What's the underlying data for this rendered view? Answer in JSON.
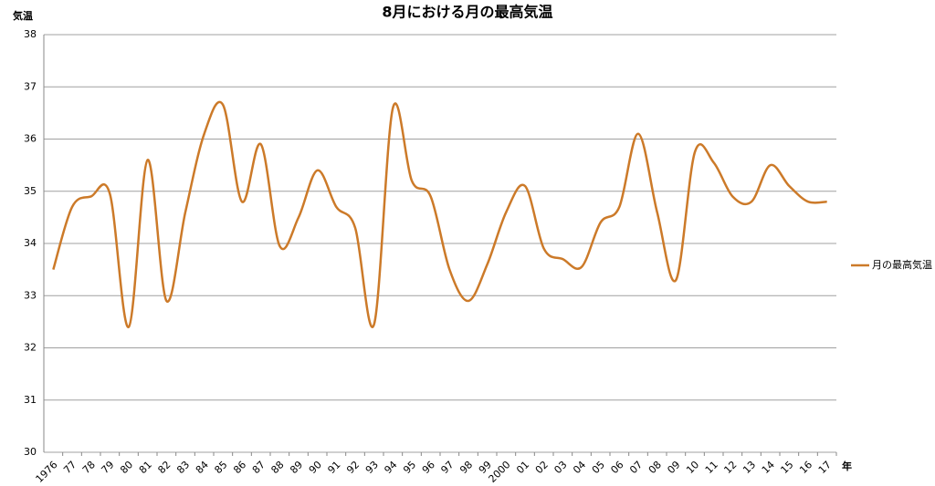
{
  "chart_data": {
    "type": "line",
    "title": "8月における月の最高気温",
    "y_label": "気温",
    "x_label": "年",
    "categories": [
      "1976",
      "77",
      "78",
      "79",
      "80",
      "81",
      "82",
      "83",
      "84",
      "85",
      "86",
      "87",
      "88",
      "89",
      "90",
      "91",
      "92",
      "93",
      "94",
      "95",
      "96",
      "97",
      "98",
      "99",
      "2000",
      "01",
      "02",
      "03",
      "04",
      "05",
      "06",
      "07",
      "08",
      "09",
      "10",
      "11",
      "12",
      "13",
      "14",
      "15",
      "16",
      "17"
    ],
    "series": [
      {
        "name": "月の最高気温",
        "color": "#cc7a29",
        "values": [
          33.5,
          34.7,
          34.9,
          34.95,
          32.4,
          35.6,
          32.9,
          34.6,
          36.1,
          36.65,
          34.8,
          35.9,
          33.95,
          34.5,
          35.4,
          34.7,
          34.3,
          32.45,
          36.6,
          35.2,
          34.9,
          33.5,
          32.9,
          33.6,
          34.6,
          35.1,
          33.9,
          33.7,
          33.55,
          34.4,
          34.7,
          36.1,
          34.6,
          33.3,
          35.75,
          35.55,
          34.9,
          34.8,
          35.5,
          35.1,
          34.8,
          34.8
        ]
      }
    ],
    "ylim": [
      30,
      38
    ],
    "yticks": [
      30,
      31,
      32,
      33,
      34,
      35,
      36,
      37,
      38
    ],
    "grid": true,
    "smooth": true,
    "legend": "right"
  }
}
